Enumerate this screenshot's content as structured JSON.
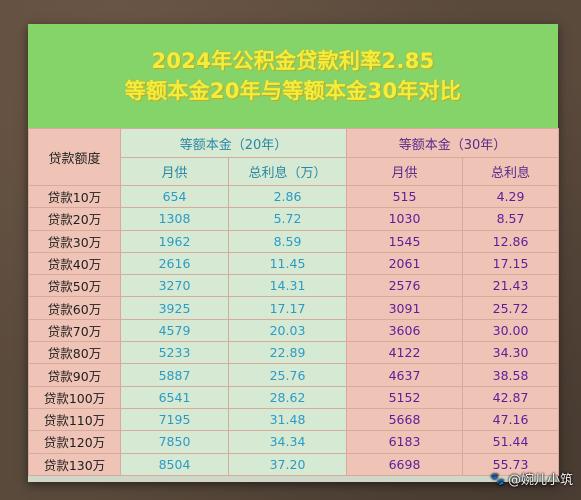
{
  "title": {
    "line1": "2024年公积金贷款利率2.85",
    "line2": "等额本金20年与等额本金30年对比"
  },
  "header": {
    "corner": "贷款额度",
    "group20": "等额本金（20年）",
    "group30": "等额本金（30年）",
    "monthly": "月供",
    "total20": "总利息（万）",
    "total30": "总利息"
  },
  "rows": [
    {
      "label": "贷款10万",
      "m20": "654",
      "t20": "2.86",
      "m30": "515",
      "t30": "4.29"
    },
    {
      "label": "贷款20万",
      "m20": "1308",
      "t20": "5.72",
      "m30": "1030",
      "t30": "8.57"
    },
    {
      "label": "贷款30万",
      "m20": "1962",
      "t20": "8.59",
      "m30": "1545",
      "t30": "12.86"
    },
    {
      "label": "贷款40万",
      "m20": "2616",
      "t20": "11.45",
      "m30": "2061",
      "t30": "17.15"
    },
    {
      "label": "贷款50万",
      "m20": "3270",
      "t20": "14.31",
      "m30": "2576",
      "t30": "21.43"
    },
    {
      "label": "贷款60万",
      "m20": "3925",
      "t20": "17.17",
      "m30": "3091",
      "t30": "25.72"
    },
    {
      "label": "贷款70万",
      "m20": "4579",
      "t20": "20.03",
      "m30": "3606",
      "t30": "30.00"
    },
    {
      "label": "贷款80万",
      "m20": "5233",
      "t20": "22.89",
      "m30": "4122",
      "t30": "34.30"
    },
    {
      "label": "贷款90万",
      "m20": "5887",
      "t20": "25.76",
      "m30": "4637",
      "t30": "38.58"
    },
    {
      "label": "贷款100万",
      "m20": "6541",
      "t20": "28.62",
      "m30": "5152",
      "t30": "42.87"
    },
    {
      "label": "贷款110万",
      "m20": "7195",
      "t20": "31.48",
      "m30": "5668",
      "t30": "47.16"
    },
    {
      "label": "贷款120万",
      "m20": "7850",
      "t20": "34.34",
      "m30": "6183",
      "t30": "51.44"
    },
    {
      "label": "贷款130万",
      "m20": "8504",
      "t20": "37.20",
      "m30": "6698",
      "t30": "55.73"
    }
  ],
  "watermark": {
    "icon": "paw-icon",
    "text": "@婉儿小筑"
  },
  "colors": {
    "title_bg": "#84d46a",
    "title_text": "#f3ee3a",
    "col20_bg": "#d6ead3",
    "col20_text": "#2b9ac7",
    "col30_bg": "#efc3b6",
    "col30_text": "#5b1f9a"
  }
}
